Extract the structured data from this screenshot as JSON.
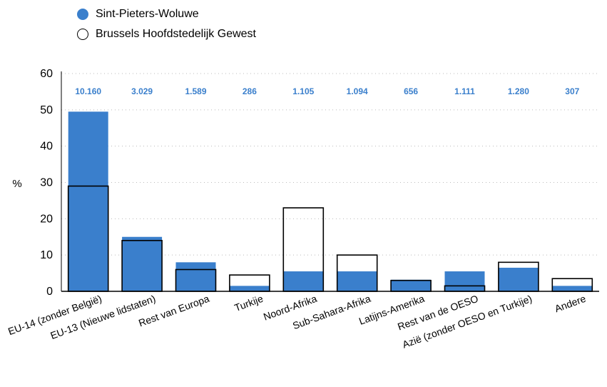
{
  "legend": {
    "items": [
      {
        "label": "Sint-Pieters-Woluwe",
        "style": "filled"
      },
      {
        "label": "Brussels Hoofdstedelijk Gewest",
        "style": "outline"
      }
    ]
  },
  "chart_data": {
    "type": "bar",
    "title": "",
    "xlabel": "",
    "ylabel": "%",
    "ylim": [
      0,
      60
    ],
    "yticks": [
      0,
      10,
      20,
      30,
      40,
      50,
      60
    ],
    "grid": true,
    "legend_position": "top-left",
    "categories": [
      "EU-14 (zonder België)",
      "EU-13 (Nieuwe lidstaten)",
      "Rest van Europa",
      "Turkije",
      "Noord-Afrika",
      "Sub-Sahara-Afrika",
      "Latijns-Amerika",
      "Rest van de OESO",
      "Azië (zonder OESO en Turkije)",
      "Andere"
    ],
    "data_labels": [
      "10.160",
      "3.029",
      "1.589",
      "286",
      "1.105",
      "1.094",
      "656",
      "1.111",
      "1.280",
      "307"
    ],
    "series": [
      {
        "name": "Sint-Pieters-Woluwe",
        "style": "filled",
        "values": [
          49.5,
          15,
          8,
          1.5,
          5.5,
          5.5,
          3.2,
          5.5,
          6.5,
          1.5
        ]
      },
      {
        "name": "Brussels Hoofdstedelijk Gewest",
        "style": "outline",
        "values": [
          29,
          14,
          6,
          4.5,
          23,
          10,
          3,
          1.5,
          8,
          3.5
        ]
      }
    ],
    "colors": {
      "filled": "#3a7fcc",
      "outline_stroke": "#000000",
      "data_label": "#3a7fcc",
      "grid": "#bbbbbb"
    }
  }
}
